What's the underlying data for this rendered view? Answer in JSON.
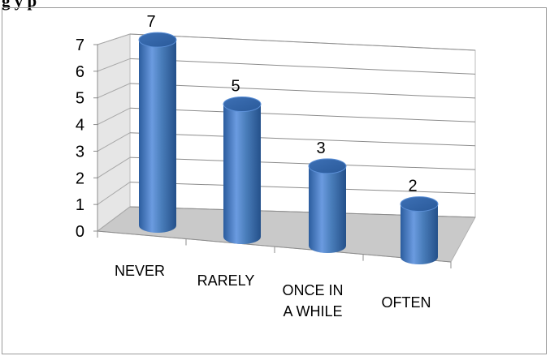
{
  "caption_fragment": "g                                         y                              p",
  "chart_data": {
    "type": "bar",
    "style": "3d-cylinder",
    "categories": [
      "NEVER",
      "RARELY",
      "ONCE IN A WHILE",
      "OFTEN"
    ],
    "category_lines": [
      [
        "NEVER"
      ],
      [
        "RARELY"
      ],
      [
        "ONCE IN",
        "A WHILE"
      ],
      [
        "OFTEN"
      ]
    ],
    "values": [
      7,
      5,
      3,
      2
    ],
    "data_labels": [
      "7",
      "5",
      "3",
      "2"
    ],
    "yticks": [
      "0",
      "1",
      "2",
      "3",
      "4",
      "5",
      "6",
      "7"
    ],
    "ylim": [
      0,
      7
    ],
    "grid": true,
    "legend": "none",
    "bar_color": "#4a7ebb"
  }
}
